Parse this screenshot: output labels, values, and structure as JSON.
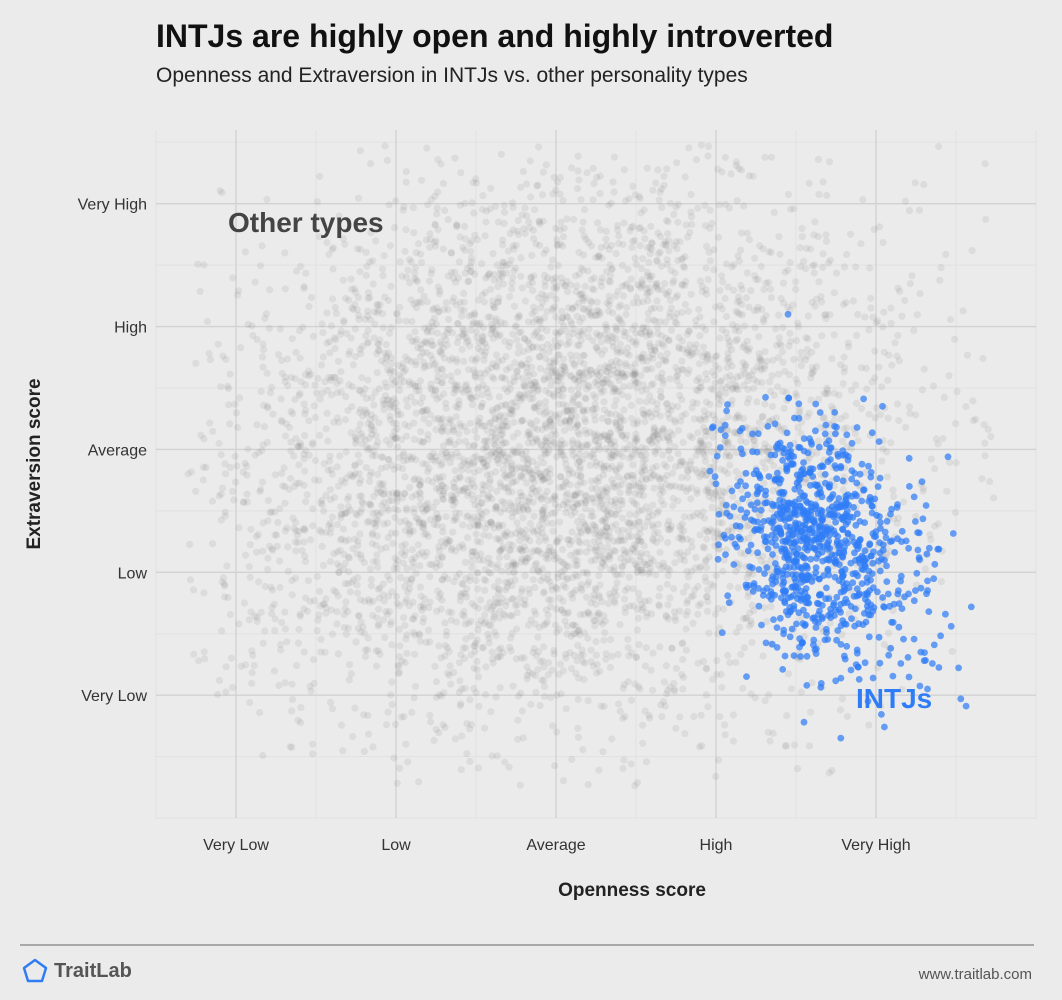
{
  "header": {
    "title": "INTJs are highly open and highly introverted",
    "subtitle": "Openness and Extraversion in INTJs vs. other personality types"
  },
  "footer": {
    "brand": "TraitLab",
    "brand_icon": "pentagon-icon",
    "brand_color": "#2f7df6",
    "url": "www.traitlab.com"
  },
  "chart_data": {
    "type": "scatter",
    "xlabel": "Openness score",
    "ylabel": "Extraversion score",
    "x_ticks": [
      "Very Low",
      "Low",
      "Average",
      "High",
      "Very High"
    ],
    "y_ticks": [
      "Very Low",
      "Low",
      "Average",
      "High",
      "Very High"
    ],
    "xlim": [
      -2.5,
      3
    ],
    "ylim": [
      -3,
      2.6
    ],
    "grid": true,
    "annotations": [
      "Other types",
      "INTJs"
    ],
    "colors": {
      "background": "#ebebeb",
      "other_types": "#7f7f7f",
      "intj": "#2f7df6",
      "grid_major": "#d2d2d2",
      "grid_minor": "#e1e1e1"
    },
    "series": [
      {
        "name": "Other types",
        "color": "#7f7f7f",
        "center_x": 0.0,
        "center_y": 0.0,
        "spread_x": 1.05,
        "spread_y": 1.15
      },
      {
        "name": "INTJs",
        "color": "#2f7df6",
        "center_x": 1.4,
        "center_y": -0.6,
        "spread_x": 0.45,
        "spread_y": 0.48,
        "points": [
          [
            1.45,
            1.1
          ],
          [
            1.85,
            0.05
          ],
          [
            2.45,
            -0.06
          ],
          [
            1.0,
            -0.28
          ],
          [
            2.53,
            -2.03
          ],
          [
            2.47,
            -1.44
          ],
          [
            2.33,
            -1.32
          ],
          [
            1.35,
            -1.18
          ],
          [
            1.55,
            -2.22
          ],
          [
            1.78,
            -2.35
          ],
          [
            1.95,
            -2.05
          ],
          [
            2.28,
            -1.65
          ],
          [
            2.16,
            -0.75
          ],
          [
            1.7,
            -0.1
          ],
          [
            1.15,
            0.15
          ]
        ]
      }
    ]
  }
}
